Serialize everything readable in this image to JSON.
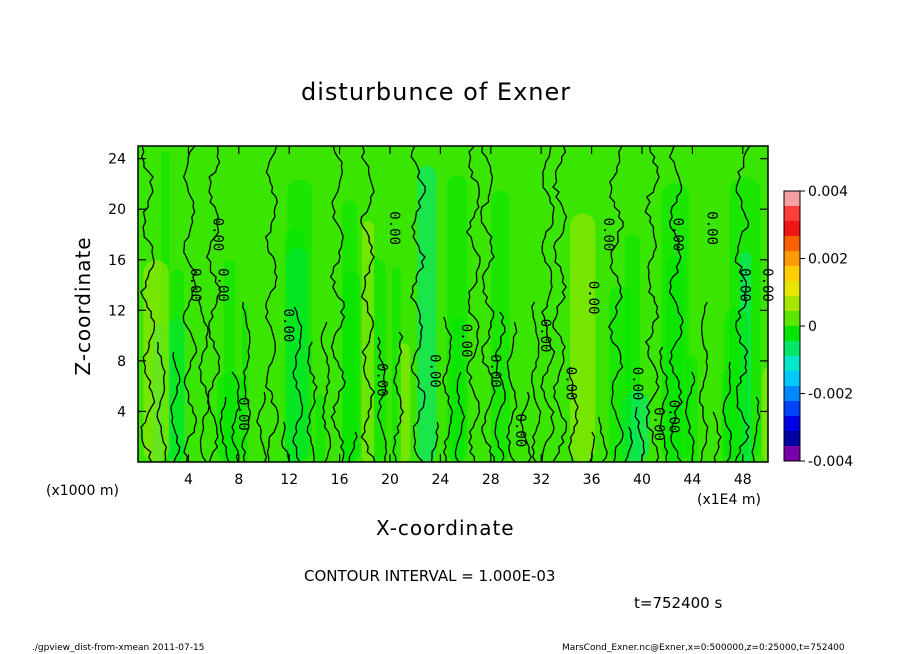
{
  "chart_data": {
    "type": "heatmap",
    "title": "disturbunce of Exner",
    "xlabel": "X-coordinate",
    "ylabel": "Z-coordinate",
    "x_unit_left": "(x1000 m)",
    "x_unit_right": "(x1E4 m)",
    "xlim": [
      0,
      50
    ],
    "ylim": [
      0,
      25
    ],
    "x_ticks": [
      "4",
      "8",
      "12",
      "16",
      "20",
      "24",
      "28",
      "32",
      "36",
      "40",
      "44",
      "48"
    ],
    "y_ticks": [
      "4",
      "8",
      "12",
      "16",
      "20",
      "24"
    ],
    "colorbar": {
      "ticks": [
        "0.004",
        "0.002",
        "0",
        "-0.002",
        "-0.004"
      ],
      "range": [
        -0.004,
        0.004
      ],
      "colors": [
        "#f4a0a0",
        "#ff3c3c",
        "#f01414",
        "#ff6000",
        "#ff9a00",
        "#ffcc00",
        "#e6e600",
        "#a6e600",
        "#5ae600",
        "#00e600",
        "#00e66a",
        "#00e6c8",
        "#00c8ff",
        "#0088ff",
        "#0044ff",
        "#0000e6",
        "#0000a0",
        "#7a00a8"
      ]
    },
    "contour_label": "0.00",
    "contour_interval": "CONTOUR INTERVAL = 1.000E-03",
    "time_label": "t=752400 s"
  },
  "footer": {
    "left": "./gpview_dist-from-xmean  2011-07-15",
    "right": "MarsCond_Exner.nc@Exner,x=0:500000,z=0:25000,t=752400"
  },
  "colors": {
    "field_base": "#3ae600",
    "field_green": "#00e600",
    "field_cyan": "#00e68a",
    "field_yellow": "#a6e600"
  }
}
